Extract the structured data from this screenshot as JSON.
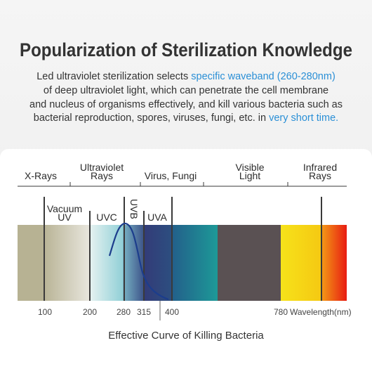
{
  "header": {
    "title": "Popularization of Sterilization Knowledge"
  },
  "description": {
    "lines": [
      [
        {
          "text": "Led ultraviolet sterilization selects "
        },
        {
          "text": "specific waveband (260-280nm)",
          "highlight": true
        }
      ],
      [
        {
          "text": "of deep ultraviolet light, which can penetrate the cell membrane"
        }
      ],
      [
        {
          "text": "and nucleus of organisms effectively, and kill various bacteria such as"
        }
      ],
      [
        {
          "text": "bacterial reproduction, spores, viruses, fungi, etc. in "
        },
        {
          "text": "very short time.",
          "highlight": true
        }
      ]
    ]
  },
  "diagram": {
    "regions": [
      {
        "lines": [
          "X-Rays"
        ]
      },
      {
        "lines": [
          "Ultraviolet",
          "Rays"
        ]
      },
      {
        "lines": [
          "Virus, Fungi"
        ]
      },
      {
        "lines": [
          "Visible",
          "Light"
        ]
      },
      {
        "lines": [
          "Infrared",
          "Rays"
        ]
      }
    ],
    "bands": [
      {
        "lines": [
          "Vacuum",
          "UV"
        ]
      },
      {
        "lines": [
          "UVC"
        ]
      },
      {
        "lines": [
          "UVB"
        ]
      },
      {
        "lines": [
          "UVA"
        ]
      }
    ],
    "axis": {
      "ticks": [
        100,
        200,
        280,
        315,
        400,
        780
      ],
      "label": "Wavelength(nm)"
    },
    "caption": "Effective Curve of Killing Bacteria"
  }
}
